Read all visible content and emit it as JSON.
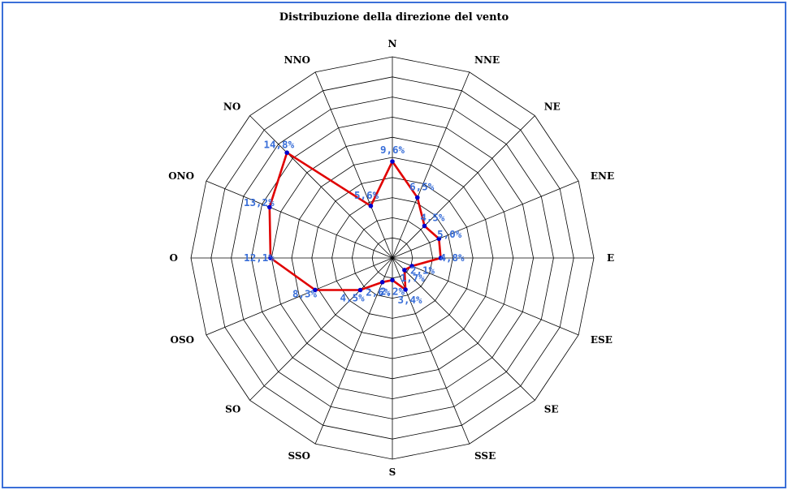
{
  "chart_data": {
    "type": "radar",
    "title": "Distribuzione della direzione del vento",
    "categories": [
      "N",
      "NNE",
      "NE",
      "ENE",
      "E",
      "ESE",
      "SE",
      "SSE",
      "S",
      "SSO",
      "SO",
      "OSO",
      "O",
      "ONO",
      "NO",
      "NNO"
    ],
    "values": [
      9.6,
      6.5,
      4.5,
      5.0,
      4.8,
      2.1,
      1.7,
      3.4,
      2.2,
      2.6,
      4.5,
      8.3,
      12.1,
      13.2,
      14.8,
      5.6
    ],
    "value_labels": [
      "9,6%",
      "6,5%",
      "4,5%",
      "5,0%",
      "4,8%",
      "2,1%",
      "1,7%",
      "3,4%",
      "2,2%",
      "2,6%",
      "4,5%",
      "8,3%",
      "12,1%",
      "13,2%",
      "14,8%",
      "5,6%"
    ],
    "rmax": 20,
    "rings": 10,
    "line_color": "#e00000",
    "marker_color": "#0000cc",
    "label_color": "#3a6fd8",
    "grid_color": "#000000"
  }
}
